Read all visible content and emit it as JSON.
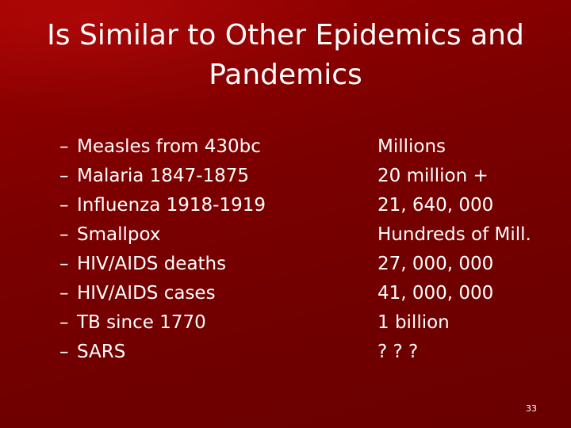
{
  "slide": {
    "title_line1": "Is Similar to Other Epidemics and",
    "title_line2": "Pandemics",
    "bullet_marker": "–",
    "left_items": [
      "Measles from 430bc",
      "Malaria 1847-1875",
      "Influenza 1918-1919",
      "Smallpox",
      "HIV/AIDS deaths",
      "HIV/AIDS cases",
      "TB since 1770",
      "SARS"
    ],
    "right_items": [
      "Millions",
      "20 million +",
      "21, 640, 000",
      "Hundreds of Mill.",
      "27, 000, 000",
      "41, 000, 000",
      "1 billion",
      "? ? ?"
    ],
    "page_number": "33"
  },
  "colors": {
    "background": "#7a0000",
    "text": "#ffffff"
  }
}
